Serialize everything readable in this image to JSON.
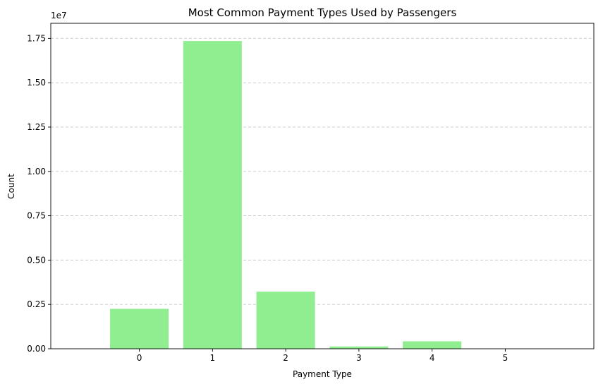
{
  "chart_data": {
    "type": "bar",
    "title": "Most Common Payment Types Used by Passengers",
    "xlabel": "Payment Type",
    "ylabel": "Count",
    "y_offset_text": "1e7",
    "categories": [
      "0",
      "1",
      "2",
      "3",
      "4",
      "5"
    ],
    "values": [
      2250000,
      17350000,
      3220000,
      130000,
      420000,
      2000
    ],
    "ylim": [
      0,
      18350000
    ],
    "yticks": [
      0,
      2500000,
      5000000,
      7500000,
      10000000,
      12500000,
      15000000,
      17500000
    ],
    "ytick_labels": [
      "0.00",
      "0.25",
      "0.50",
      "0.75",
      "1.00",
      "1.25",
      "1.50",
      "1.75"
    ],
    "grid": "y-dashed",
    "legend": "none",
    "colors": {
      "bar": "#90ee90",
      "grid": "#c8c8c8"
    }
  }
}
